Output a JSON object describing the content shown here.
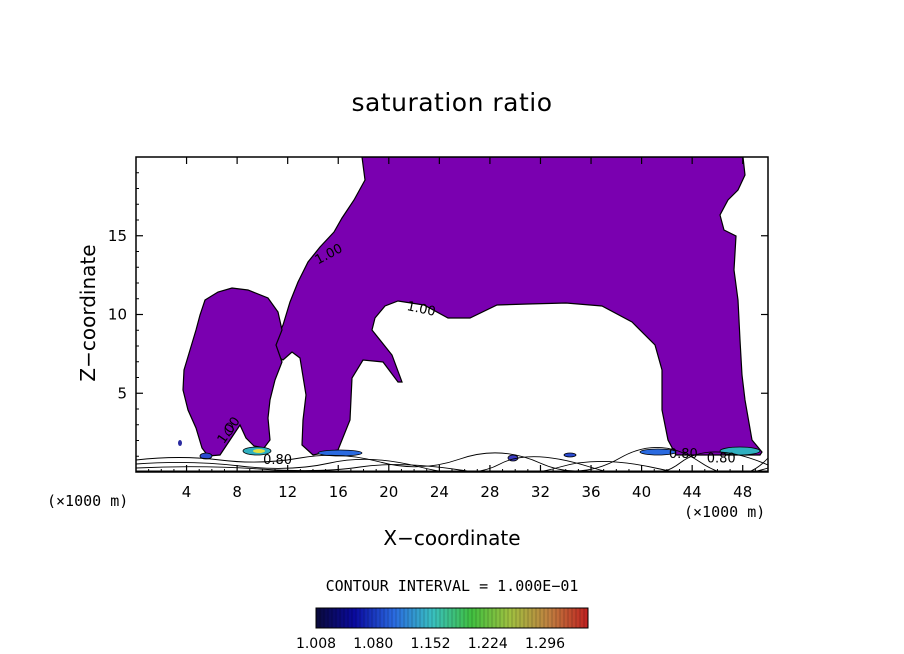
{
  "chart_data": {
    "type": "contour",
    "title": "saturation ratio",
    "xlabel": "X−coordinate",
    "ylabel": "Z−coordinate",
    "x_unit": "(×1000 m)",
    "xlim": [
      0,
      50
    ],
    "ylim": [
      0,
      20
    ],
    "x_ticks": [
      4,
      8,
      12,
      16,
      20,
      24,
      28,
      32,
      36,
      40,
      44,
      48
    ],
    "y_ticks": [
      5,
      10,
      15
    ],
    "contour_interval_text": "CONTOUR INTERVAL = 1.000E−01",
    "contour_labels": [
      {
        "text": "1.00",
        "x": 15.4,
        "z": 13.6
      },
      {
        "text": "1.00",
        "x": 22.5,
        "z": 10.1
      },
      {
        "text": "1.00",
        "x": 7.6,
        "z": 2.5
      },
      {
        "text": "0.80",
        "x": 11.2,
        "z": 0.5
      },
      {
        "text": "0.80",
        "x": 43.3,
        "z": 0.9
      },
      {
        "text": "0.80",
        "x": 46.3,
        "z": 0.6
      }
    ],
    "colorbar": {
      "min": 1.008,
      "max": 1.35,
      "tick_labels": [
        "1.008",
        "1.080",
        "1.152",
        "1.224",
        "1.296"
      ],
      "colors": [
        "#0a0a3a",
        "#0a0aa0",
        "#2a6ae0",
        "#39c0c0",
        "#40c040",
        "#a0c040",
        "#c08040",
        "#c02020"
      ]
    },
    "fill_color": "#7a00b0",
    "grid": false,
    "legend": "bottom"
  }
}
